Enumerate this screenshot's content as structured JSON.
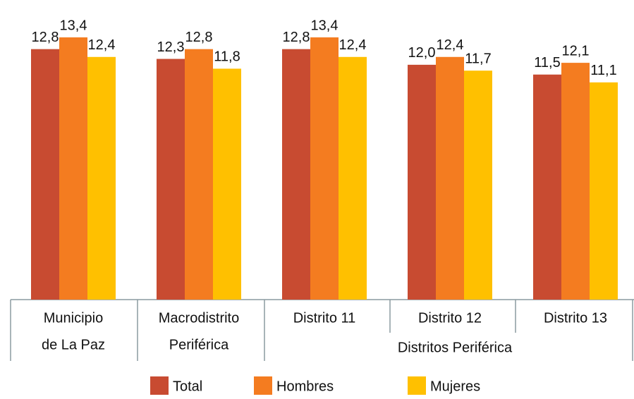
{
  "chart_data": {
    "type": "bar",
    "categories": [
      [
        "Municipio",
        "de La Paz"
      ],
      [
        "Macrodistrito",
        "Periférica"
      ],
      [
        "Distrito 11"
      ],
      [
        "Distrito 12"
      ],
      [
        "Distrito 13"
      ]
    ],
    "group_label": "Distritos Periférica",
    "series": [
      {
        "name": "Total",
        "color": "#c84b31",
        "values": [
          12.8,
          12.3,
          12.8,
          12.0,
          11.5
        ],
        "value_labels": [
          "12,8",
          "12,3",
          "12,8",
          "12,0",
          "11,5"
        ]
      },
      {
        "name": "Hombres",
        "color": "#f47c20",
        "values": [
          13.4,
          12.8,
          13.4,
          12.4,
          12.1
        ],
        "value_labels": [
          "13,4",
          "12,8",
          "13,4",
          "12,4",
          "12,1"
        ]
      },
      {
        "name": "Mujeres",
        "color": "#ffc000",
        "values": [
          12.4,
          11.8,
          12.4,
          11.7,
          11.1
        ],
        "value_labels": [
          "12,4",
          "11,8",
          "12,4",
          "11,7",
          "11,1"
        ]
      }
    ],
    "legend": "bottom"
  }
}
